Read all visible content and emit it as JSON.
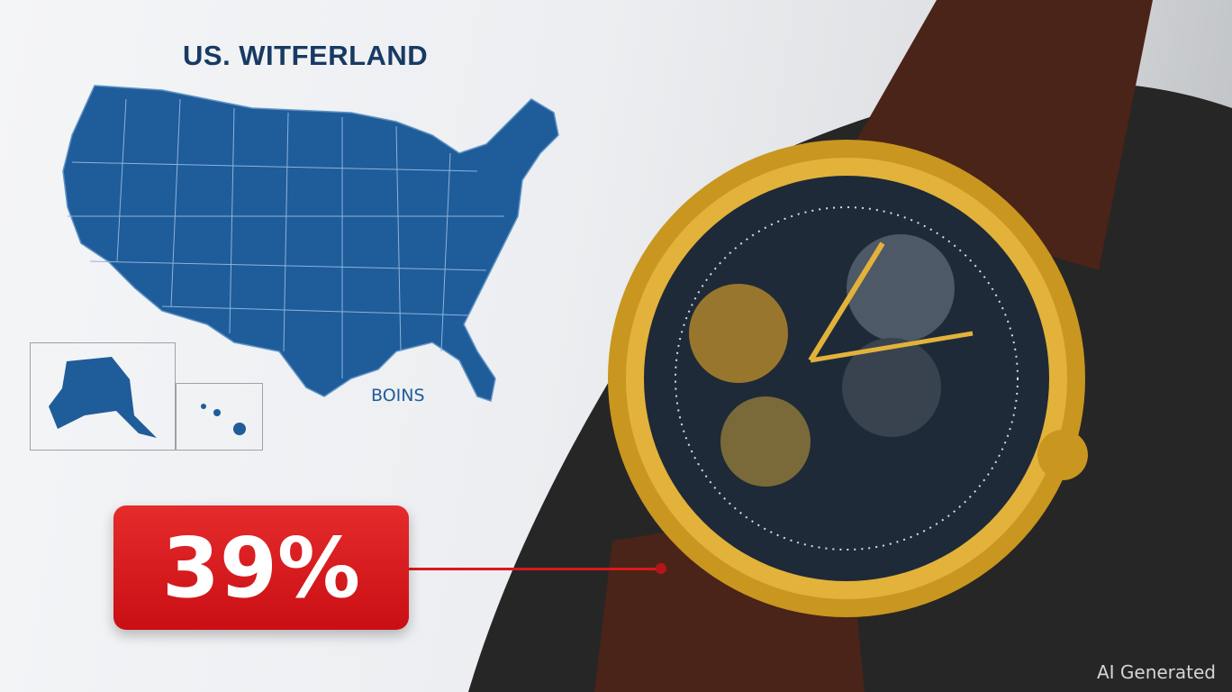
{
  "header": {
    "title": "US. WITFERLAND"
  },
  "map": {
    "legend_label": "BOINS",
    "fill_color": "#1f5c9a"
  },
  "callout": {
    "value": "39%",
    "color": "#d8191c"
  },
  "watermark": "AI Generated"
}
